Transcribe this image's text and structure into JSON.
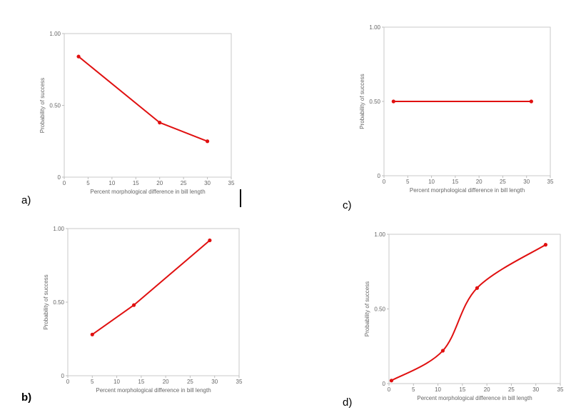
{
  "colors": {
    "series": "#e01010",
    "axis": "#c9c9c9",
    "text": "#666666"
  },
  "chart_data": [
    {
      "panel": "a)",
      "type": "line",
      "title": "",
      "xlabel": "Percent morphological difference in bill length",
      "ylabel": "Probability of success",
      "xlim": [
        0,
        35
      ],
      "ylim": [
        0,
        1
      ],
      "xticks": [
        "0",
        "5",
        "10",
        "15",
        "20",
        "25",
        "30",
        "35"
      ],
      "yticks": [
        "0",
        "0.50",
        "1.00"
      ],
      "curve": "linear",
      "series": [
        {
          "x": [
            3,
            20,
            30
          ],
          "y": [
            0.84,
            0.38,
            0.25
          ]
        }
      ]
    },
    {
      "panel": "c)",
      "type": "line",
      "title": "",
      "xlabel": "Percent morphological difference in bill length",
      "ylabel": "Probability of success",
      "xlim": [
        0,
        35
      ],
      "ylim": [
        0,
        1
      ],
      "xticks": [
        "0",
        "5",
        "10",
        "15",
        "20",
        "25",
        "30",
        "35"
      ],
      "yticks": [
        "0",
        "0.50",
        "1.00"
      ],
      "curve": "linear",
      "series": [
        {
          "x": [
            2,
            31
          ],
          "y": [
            0.5,
            0.5
          ]
        }
      ]
    },
    {
      "panel": "b)",
      "type": "line",
      "title": "",
      "xlabel": "Percent morphological difference in bill length",
      "ylabel": "Probability of success",
      "xlim": [
        0,
        35
      ],
      "ylim": [
        0,
        1
      ],
      "xticks": [
        "0",
        "5",
        "10",
        "15",
        "20",
        "25",
        "30",
        "35"
      ],
      "yticks": [
        "0",
        "0.50",
        "1.00"
      ],
      "curve": "linear",
      "series": [
        {
          "x": [
            5,
            13.5,
            29
          ],
          "y": [
            0.28,
            0.48,
            0.92
          ]
        }
      ]
    },
    {
      "panel": "d)",
      "type": "line",
      "title": "",
      "xlabel": "Percent morphological difference in bill length",
      "ylabel": "Probability of success",
      "xlim": [
        0,
        35
      ],
      "ylim": [
        0,
        1
      ],
      "xticks": [
        "0",
        "5",
        "10",
        "15",
        "20",
        "25",
        "30",
        "35"
      ],
      "yticks": [
        "0",
        "0.50",
        "1.00"
      ],
      "curve": "smooth",
      "series": [
        {
          "x": [
            0.5,
            11,
            18,
            32
          ],
          "y": [
            0.02,
            0.22,
            0.64,
            0.93
          ]
        }
      ]
    }
  ]
}
